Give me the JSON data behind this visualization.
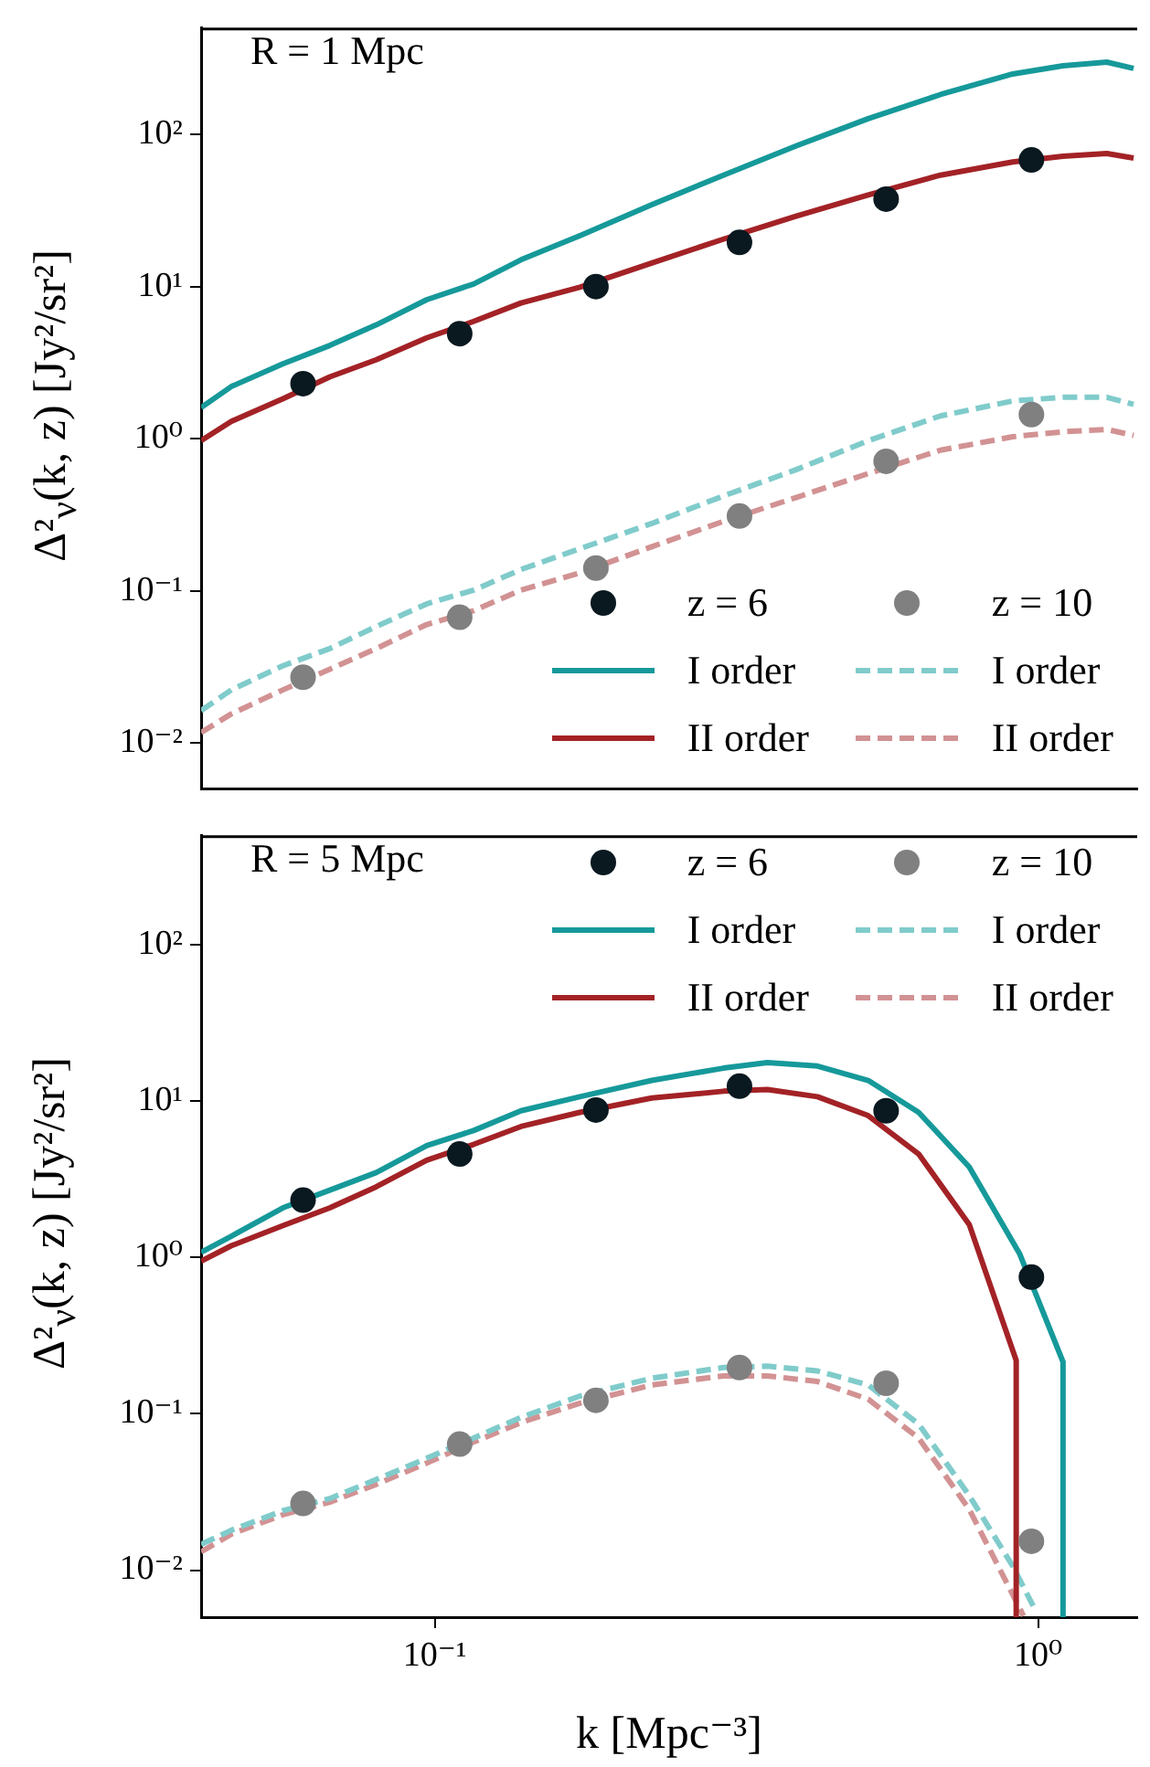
{
  "chart_data": [
    {
      "type": "line",
      "log": "xy",
      "legend": "bottom right",
      "tick_labels": "y",
      "ylabel": "Δ²$_{ν}$(k, z) [Jy²/sr²]",
      "annotations": [
        "R = 1 Mpc"
      ],
      "xlim": [
        0.041,
        1.46
      ],
      "ylim": [
        0.005,
        500
      ],
      "yticks": [
        {
          "value": 0.01,
          "label": "10⁻²"
        },
        {
          "value": 0.1,
          "label": "10⁻¹"
        },
        {
          "value": 1,
          "label": "10⁰"
        },
        {
          "value": 10,
          "label": "10¹"
        },
        {
          "value": 100,
          "label": "10²"
        }
      ],
      "x": [
        0.041,
        0.046,
        0.056,
        0.067,
        0.08,
        0.097,
        0.116,
        0.139,
        0.174,
        0.229,
        0.301,
        0.397,
        0.523,
        0.689,
        0.908,
        1.1,
        1.3,
        1.44
      ],
      "series": [
        {
          "name": "z = 6",
          "type": "scatter",
          "marker": "circle",
          "color": "#0a1820",
          "x": [
            0.0605,
            0.11,
            0.185,
            0.32,
            0.56,
            0.975
          ],
          "values": [
            2.3,
            4.9,
            10,
            19.5,
            37.6,
            68
          ]
        },
        {
          "name": "I order",
          "color": "#16999a",
          "line_style": "solid",
          "values": [
            1.6,
            2.2,
            3.1,
            4.1,
            5.6,
            8.2,
            10.4,
            15,
            21.6,
            34.5,
            54,
            84,
            127,
            183,
            250,
            283,
            299,
            272
          ]
        },
        {
          "name": "II order",
          "color": "#a32226",
          "line_style": "solid",
          "values": [
            0.97,
            1.3,
            1.83,
            2.55,
            3.3,
            4.6,
            5.9,
            7.8,
            9.9,
            14.3,
            20.5,
            29,
            40,
            54,
            66,
            72,
            75,
            70
          ]
        },
        {
          "name": "z = 10",
          "type": "scatter",
          "marker": "circle",
          "color": "#808080",
          "x": [
            0.0605,
            0.11,
            0.185,
            0.32,
            0.56,
            0.975
          ],
          "values": [
            0.027,
            0.067,
            0.141,
            0.31,
            0.71,
            1.44
          ]
        },
        {
          "name": "I order",
          "color": "#80cbcb",
          "line_style": "dashed",
          "values": [
            0.0163,
            0.0223,
            0.0321,
            0.0417,
            0.0582,
            0.082,
            0.101,
            0.138,
            0.189,
            0.277,
            0.42,
            0.625,
            0.97,
            1.41,
            1.77,
            1.87,
            1.87,
            1.68
          ]
        },
        {
          "name": "II order",
          "color": "#d29293",
          "line_style": "dashed",
          "values": [
            0.0117,
            0.0155,
            0.0223,
            0.0305,
            0.0417,
            0.06,
            0.074,
            0.101,
            0.131,
            0.195,
            0.286,
            0.41,
            0.59,
            0.84,
            1.03,
            1.11,
            1.15,
            1.05
          ]
        }
      ]
    },
    {
      "type": "line",
      "log": "xy",
      "legend": "top right",
      "xlabel": "k [Mpc⁻³]",
      "ylabel": "Δ²$_{ν}$(k, z) [Jy²/sr²]",
      "annotations": [
        "R = 5 Mpc"
      ],
      "xlim": [
        0.041,
        1.46
      ],
      "ylim": [
        0.005,
        500
      ],
      "xticks": [
        {
          "value": 0.1,
          "label": "10⁻¹"
        },
        {
          "value": 1,
          "label": "10⁰"
        }
      ],
      "yticks": [
        {
          "value": 0.01,
          "label": "10⁻²"
        },
        {
          "value": 0.1,
          "label": "10⁻¹"
        },
        {
          "value": 1,
          "label": "10⁰"
        },
        {
          "value": 10,
          "label": "10¹"
        },
        {
          "value": 100,
          "label": "10²"
        }
      ],
      "series": [
        {
          "name": "z = 6",
          "type": "scatter",
          "marker": "circle",
          "color": "#0a1820",
          "x": [
            0.0605,
            0.11,
            0.185,
            0.32,
            0.56,
            0.975
          ],
          "values": [
            2.33,
            4.6,
            8.8,
            12.5,
            8.7,
            0.75
          ]
        },
        {
          "name": "I order",
          "color": "#16999a",
          "line_style": "solid",
          "x": [
            0.041,
            0.046,
            0.056,
            0.067,
            0.08,
            0.097,
            0.116,
            0.139,
            0.174,
            0.229,
            0.301,
            0.356,
            0.431,
            0.523,
            0.634,
            0.769,
            0.933,
            1.1,
            1.1
          ],
          "values": [
            1.08,
            1.37,
            2.08,
            2.7,
            3.5,
            5.2,
            6.5,
            8.7,
            10.7,
            13.6,
            16.3,
            17.7,
            16.8,
            13.6,
            8.5,
            3.8,
            1.05,
            0.215,
            0.005
          ]
        },
        {
          "name": "II order",
          "color": "#a32226",
          "line_style": "solid",
          "x": [
            0.041,
            0.046,
            0.056,
            0.067,
            0.08,
            0.097,
            0.116,
            0.139,
            0.174,
            0.229,
            0.301,
            0.356,
            0.431,
            0.523,
            0.634,
            0.769,
            0.92,
            0.92
          ],
          "values": [
            0.95,
            1.19,
            1.6,
            2.08,
            2.84,
            4.2,
            5.3,
            6.9,
            8.5,
            10.5,
            11.6,
            11.9,
            10.7,
            8.1,
            4.6,
            1.63,
            0.22,
            0.005
          ]
        },
        {
          "name": "z = 10",
          "type": "scatter",
          "marker": "circle",
          "color": "#808080",
          "x": [
            0.0605,
            0.11,
            0.185,
            0.32,
            0.56,
            0.975
          ],
          "values": [
            0.0267,
            0.064,
            0.122,
            0.198,
            0.157,
            0.0153
          ]
        },
        {
          "name": "I order",
          "color": "#80cbcb",
          "line_style": "dashed",
          "x": [
            0.041,
            0.046,
            0.056,
            0.067,
            0.08,
            0.097,
            0.116,
            0.139,
            0.174,
            0.229,
            0.301,
            0.356,
            0.431,
            0.523,
            0.634,
            0.769,
            0.908,
            0.986
          ],
          "values": [
            0.0146,
            0.018,
            0.024,
            0.0287,
            0.038,
            0.052,
            0.07,
            0.095,
            0.13,
            0.169,
            0.198,
            0.202,
            0.188,
            0.153,
            0.086,
            0.03,
            0.0106,
            0.0057
          ]
        },
        {
          "name": "II order",
          "color": "#d29293",
          "line_style": "dashed",
          "x": [
            0.041,
            0.046,
            0.056,
            0.067,
            0.08,
            0.097,
            0.116,
            0.139,
            0.174,
            0.229,
            0.301,
            0.356,
            0.431,
            0.523,
            0.634,
            0.769,
            0.883,
            0.946
          ],
          "values": [
            0.0131,
            0.017,
            0.0226,
            0.0272,
            0.0354,
            0.0484,
            0.066,
            0.088,
            0.117,
            0.153,
            0.175,
            0.175,
            0.161,
            0.124,
            0.07,
            0.0245,
            0.0086,
            0.0051
          ]
        }
      ]
    }
  ]
}
